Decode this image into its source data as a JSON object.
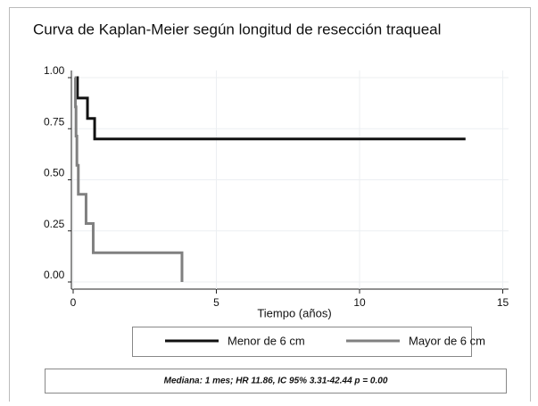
{
  "chart_data": {
    "type": "step",
    "title": "Curva de Kaplan-Meier según longitud de resección traqueal",
    "x_label": "Tiempo (años)",
    "annotation": "Mediana: 1 mes;  HR 11.86, IC 95% 3.31-42.44 p = 0.00",
    "series": [
      {
        "name": "Menor de 6 cm",
        "color": "#111111",
        "x": [
          0.1,
          0.15,
          0.5,
          0.75,
          13.7
        ],
        "values": [
          1,
          0.9,
          0.8,
          0.7,
          0.7
        ]
      },
      {
        "name": "Mayor de 6 cm",
        "color": "#808080",
        "x": [
          0.05,
          0.08,
          0.1,
          0.13,
          0.18,
          0.45,
          0.7,
          3.8
        ],
        "values": [
          1,
          0.857,
          0.714,
          0.571,
          0.429,
          0.286,
          0.143,
          0
        ]
      }
    ],
    "xlim": [
      0,
      15.2
    ],
    "xticks": [
      0,
      5,
      10,
      15
    ],
    "ylim": [
      0,
      1
    ],
    "yticks": [
      {
        "value": 0,
        "label": "0.00"
      },
      {
        "value": 0.25,
        "label": "0.25"
      },
      {
        "value": 0.5,
        "label": "0.50"
      },
      {
        "value": 0.75,
        "label": "0.75"
      },
      {
        "value": 1,
        "label": "1.00"
      }
    ],
    "grid": true
  }
}
